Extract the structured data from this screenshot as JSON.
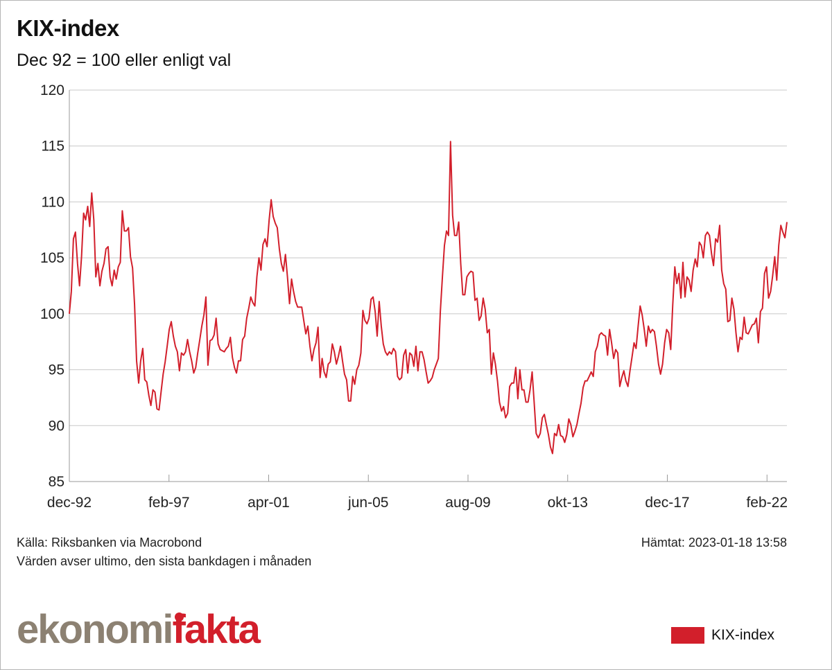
{
  "header": {
    "title": "KIX-index",
    "subtitle": "Dec 92 = 100 eller enligt val"
  },
  "footer": {
    "source": "Källa: Riksbanken via Macrobond",
    "note": "Värden avser ultimo, den sista bankdagen i månaden",
    "retrieved": "Hämtat: 2023-01-18 13:58"
  },
  "logo": {
    "part1": "ekonomi",
    "part2": "fakta"
  },
  "colors": {
    "series": "#d21f2b",
    "grid": "#c8c8c8",
    "logo_gray": "#8c8172"
  },
  "chart_data": {
    "type": "line",
    "title": "KIX-index",
    "subtitle": "Dec 92 = 100 eller enligt val",
    "xlabel": "",
    "ylabel": "",
    "ylim": [
      85,
      120
    ],
    "yticks": [
      85,
      90,
      95,
      100,
      105,
      110,
      115,
      120
    ],
    "xticks": [
      "dec-92",
      "feb-97",
      "apr-01",
      "jun-05",
      "aug-09",
      "okt-13",
      "dec-17",
      "feb-22"
    ],
    "x_start": "dec-92",
    "x_end": "dec-22",
    "xtick_step_months": 50,
    "total_months": 360,
    "grid": true,
    "legend": {
      "position": "bottom-right",
      "entries": [
        "KIX-index"
      ]
    },
    "series": [
      {
        "name": "KIX-index",
        "values": [
          100.0,
          102.0,
          106.7,
          107.3,
          104.5,
          102.5,
          105.1,
          109.0,
          108.4,
          109.6,
          107.8,
          110.8,
          108.4,
          103.3,
          104.5,
          102.5,
          103.8,
          104.5,
          105.8,
          106.0,
          103.3,
          102.5,
          103.9,
          103.1,
          104.2,
          104.6,
          109.2,
          107.4,
          107.4,
          107.7,
          105.1,
          104.1,
          100.8,
          95.8,
          93.8,
          95.8,
          96.9,
          94.1,
          93.9,
          92.7,
          91.8,
          93.2,
          93.0,
          91.5,
          91.4,
          93.0,
          94.6,
          95.7,
          97.1,
          98.6,
          99.3,
          98.0,
          97.1,
          96.6,
          94.9,
          96.5,
          96.3,
          96.6,
          97.7,
          96.6,
          95.8,
          94.7,
          95.2,
          96.5,
          97.7,
          98.9,
          99.9,
          101.5,
          95.4,
          97.6,
          97.7,
          98.1,
          99.6,
          97.3,
          96.8,
          96.7,
          96.6,
          96.9,
          97.1,
          97.9,
          96.1,
          95.2,
          94.7,
          95.8,
          95.8,
          97.7,
          98.0,
          99.6,
          100.5,
          101.5,
          101.0,
          100.7,
          103.3,
          105.0,
          103.9,
          106.2,
          106.7,
          106.0,
          108.4,
          110.2,
          108.7,
          108.1,
          107.7,
          105.8,
          104.5,
          103.8,
          105.3,
          103.3,
          100.9,
          103.1,
          102.0,
          101.1,
          100.6,
          100.6,
          100.6,
          99.4,
          98.2,
          98.9,
          97.1,
          95.8,
          96.8,
          97.4,
          98.8,
          94.3,
          96.0,
          94.8,
          94.3,
          95.5,
          95.7,
          97.3,
          96.6,
          95.5,
          96.2,
          97.1,
          95.8,
          94.6,
          94.1,
          92.2,
          92.2,
          94.4,
          93.7,
          95.0,
          95.4,
          96.5,
          100.3,
          99.4,
          99.1,
          99.6,
          101.3,
          101.5,
          100.2,
          98.0,
          101.1,
          98.9,
          97.3,
          96.6,
          96.3,
          96.6,
          96.4,
          96.9,
          96.6,
          94.4,
          94.1,
          94.3,
          96.3,
          96.8,
          94.7,
          96.5,
          96.3,
          95.3,
          97.1,
          94.9,
          96.6,
          96.6,
          95.9,
          94.8,
          93.8,
          94.0,
          94.3,
          95.0,
          95.5,
          96.0,
          100.2,
          103.3,
          106.1,
          107.4,
          107.0,
          115.4,
          108.8,
          107.0,
          107.0,
          108.2,
          104.5,
          101.7,
          101.7,
          103.3,
          103.6,
          103.8,
          103.7,
          101.2,
          101.4,
          99.4,
          99.8,
          101.4,
          100.4,
          98.3,
          98.6,
          94.6,
          96.5,
          95.5,
          94.0,
          92.1,
          91.3,
          91.7,
          90.7,
          91.1,
          93.5,
          93.8,
          93.8,
          95.2,
          92.4,
          95.0,
          93.2,
          93.2,
          92.1,
          92.1,
          93.2,
          94.8,
          92.1,
          89.3,
          88.9,
          89.3,
          90.7,
          91.0,
          90.1,
          89.2,
          88.1,
          87.5,
          89.3,
          89.1,
          90.1,
          89.1,
          89.0,
          88.5,
          89.2,
          90.6,
          90.1,
          89.0,
          89.5,
          90.1,
          91.1,
          92.0,
          93.4,
          94.0,
          94.0,
          94.4,
          94.8,
          94.4,
          96.6,
          97.1,
          98.1,
          98.3,
          98.1,
          98.0,
          96.3,
          98.6,
          97.4,
          96.0,
          96.8,
          96.5,
          93.5,
          94.3,
          94.9,
          94.0,
          93.5,
          94.9,
          96.1,
          97.4,
          96.9,
          98.9,
          100.7,
          99.9,
          98.6,
          97.1,
          98.9,
          98.3,
          98.6,
          98.4,
          97.1,
          95.5,
          94.6,
          95.5,
          97.4,
          98.6,
          98.3,
          96.8,
          100.8,
          104.2,
          102.7,
          103.6,
          101.4,
          104.6,
          101.5,
          103.3,
          103.0,
          102.0,
          103.9,
          104.9,
          104.2,
          106.4,
          106.1,
          105.0,
          107.0,
          107.3,
          107.0,
          105.4,
          104.3,
          106.7,
          106.4,
          107.9,
          103.9,
          102.7,
          102.2,
          99.3,
          99.4,
          101.4,
          100.4,
          98.3,
          96.6,
          97.9,
          97.7,
          99.7,
          98.3,
          98.2,
          98.6,
          99.0,
          99.1,
          99.6,
          97.4,
          100.2,
          100.5,
          103.6,
          104.2,
          101.4,
          102.0,
          103.4,
          105.1,
          103.0,
          106.1,
          107.9,
          107.3,
          106.8,
          108.2
        ]
      }
    ]
  }
}
